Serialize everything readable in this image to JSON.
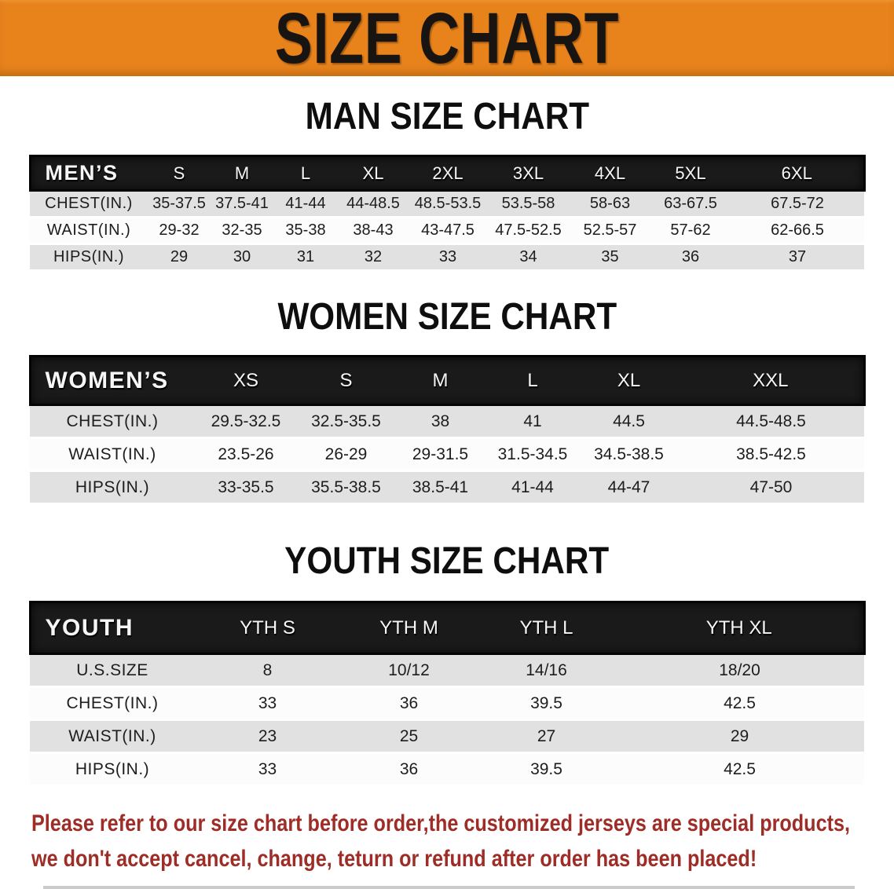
{
  "banner": {
    "title": "SIZE CHART"
  },
  "colors": {
    "banner_bg": "#E8831C",
    "header_bar": "#1A1A1A",
    "row_gray": "#E1E1E1",
    "disclaimer_red": "#9E2D27"
  },
  "sections": [
    {
      "heading": "MAN SIZE CHART",
      "header_label": "MEN’S",
      "columns": [
        "S",
        "M",
        "L",
        "XL",
        "2XL",
        "3XL",
        "4XL",
        "5XL",
        "6XL"
      ],
      "rows": [
        {
          "label": "CHEST(IN.)",
          "values": [
            "35-37.5",
            "37.5-41",
            "41-44",
            "44-48.5",
            "48.5-53.5",
            "53.5-58",
            "58-63",
            "63-67.5",
            "67.5-72"
          ]
        },
        {
          "label": "WAIST(IN.)",
          "values": [
            "29-32",
            "32-35",
            "35-38",
            "38-43",
            "43-47.5",
            "47.5-52.5",
            "52.5-57",
            "57-62",
            "62-66.5"
          ]
        },
        {
          "label": "HIPS(IN.)",
          "values": [
            "29",
            "30",
            "31",
            "32",
            "33",
            "34",
            "35",
            "36",
            "37"
          ]
        }
      ]
    },
    {
      "heading": "WOMEN SIZE CHART",
      "header_label": "WOMEN’S",
      "columns": [
        "XS",
        "S",
        "M",
        "L",
        "XL",
        "XXL"
      ],
      "rows": [
        {
          "label": "CHEST(IN.)",
          "values": [
            "29.5-32.5",
            "32.5-35.5",
            "38",
            "41",
            "44.5",
            "44.5-48.5"
          ]
        },
        {
          "label": "WAIST(IN.)",
          "values": [
            "23.5-26",
            "26-29",
            "29-31.5",
            "31.5-34.5",
            "34.5-38.5",
            "38.5-42.5"
          ]
        },
        {
          "label": "HIPS(IN.)",
          "values": [
            "33-35.5",
            "35.5-38.5",
            "38.5-41",
            "41-44",
            "44-47",
            "47-50"
          ]
        }
      ]
    },
    {
      "heading": "YOUTH SIZE CHART",
      "header_label": "YOUTH",
      "columns": [
        "YTH S",
        "YTH M",
        "YTH L",
        "YTH XL"
      ],
      "rows": [
        {
          "label": "U.S.SIZE",
          "values": [
            "8",
            "10/12",
            "14/16",
            "18/20"
          ]
        },
        {
          "label": "CHEST(IN.)",
          "values": [
            "33",
            "36",
            "39.5",
            "42.5"
          ]
        },
        {
          "label": "WAIST(IN.)",
          "values": [
            "23",
            "25",
            "27",
            "29"
          ]
        },
        {
          "label": "HIPS(IN.)",
          "values": [
            "33",
            "36",
            "39.5",
            "42.5"
          ]
        }
      ]
    }
  ],
  "disclaimer": {
    "line1": "Please refer to our size chart before order,the customized jerseys are special products,",
    "line2": "we don't accept cancel, change, teturn or refund after order has been placed!"
  }
}
